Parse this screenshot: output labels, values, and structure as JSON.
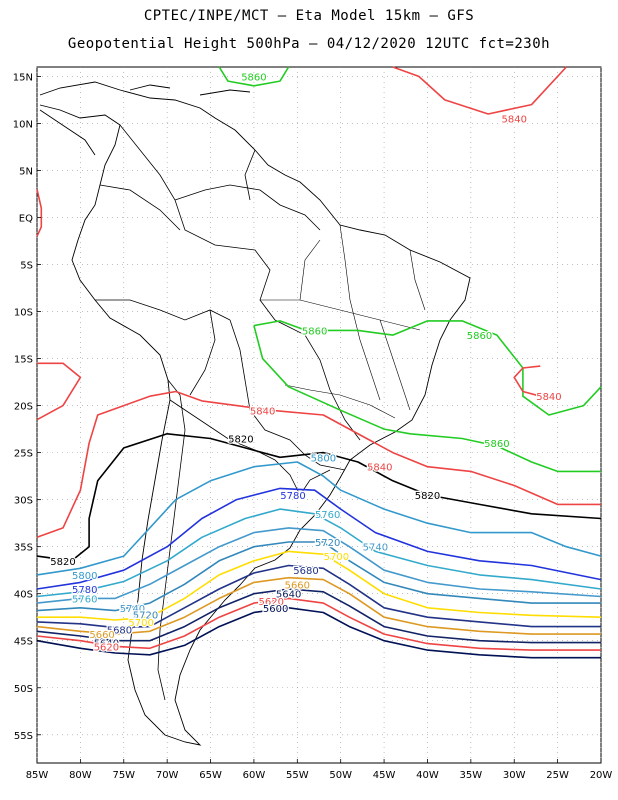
{
  "header": {
    "title_line1": "CPTEC/INPE/MCT –  Eta Model 15km – GFS",
    "title_line2": "Geopotential Height 500hPa – 04/12/2020 12UTC fct=230h"
  },
  "map": {
    "lat_labels": [
      "15N",
      "10N",
      "5N",
      "EQ",
      "5S",
      "10S",
      "15S",
      "20S",
      "25S",
      "30S",
      "35S",
      "40S",
      "45S",
      "50S",
      "55S"
    ],
    "lon_labels": [
      "85W",
      "80W",
      "75W",
      "70W",
      "65W",
      "60W",
      "55W",
      "50W",
      "45W",
      "40W",
      "35W",
      "30W",
      "25W",
      "20W"
    ],
    "lon_range": [
      -85,
      -20
    ],
    "lat_range": [
      -58,
      16
    ],
    "colors": {
      "5860": "#22cc22",
      "5840": "#ee4444",
      "5820": "#000000",
      "5800": "#3399cc",
      "5780": "#2233dd",
      "5760": "#33aacc",
      "5740": "#4499cc",
      "5720": "#3388bb",
      "5700": "#ffdd00",
      "5680": "#223388",
      "5660": "#dd9922",
      "5640": "#112266",
      "5620": "#ee4444",
      "5600": "#001155"
    },
    "contour_labels": [
      {
        "text": "5860",
        "color": "5860",
        "lon": -60,
        "lat": 15
      },
      {
        "text": "5840",
        "color": "5840",
        "lon": -30,
        "lat": 10.5
      },
      {
        "text": "5860",
        "color": "5860",
        "lon": -53,
        "lat": -12
      },
      {
        "text": "5860",
        "color": "5860",
        "lon": -34,
        "lat": -12.5
      },
      {
        "text": "5840",
        "color": "5840",
        "lon": -26,
        "lat": -19
      },
      {
        "text": "5840",
        "color": "5840",
        "lon": -59,
        "lat": -20.5
      },
      {
        "text": "5820",
        "color": "5820",
        "lon": -61.5,
        "lat": -23.5
      },
      {
        "text": "5860",
        "color": "5860",
        "lon": -32,
        "lat": -24
      },
      {
        "text": "5800",
        "color": "5800",
        "lon": -52,
        "lat": -25.5
      },
      {
        "text": "5840",
        "color": "5840",
        "lon": -45.5,
        "lat": -26.5
      },
      {
        "text": "5820",
        "color": "5820",
        "lon": -40,
        "lat": -29.5
      },
      {
        "text": "5780",
        "color": "5780",
        "lon": -55.5,
        "lat": -29.5
      },
      {
        "text": "5760",
        "color": "5760",
        "lon": -51.5,
        "lat": -31.5
      },
      {
        "text": "5720",
        "color": "5720",
        "lon": -51.5,
        "lat": -34.5
      },
      {
        "text": "5740",
        "color": "5740",
        "lon": -46,
        "lat": -35
      },
      {
        "text": "5700",
        "color": "5700",
        "lon": -50.5,
        "lat": -36
      },
      {
        "text": "5820",
        "color": "5820",
        "lon": -82,
        "lat": -36.5
      },
      {
        "text": "5800",
        "color": "5800",
        "lon": -79.5,
        "lat": -38
      },
      {
        "text": "5680",
        "color": "5680",
        "lon": -54,
        "lat": -37.5
      },
      {
        "text": "5660",
        "color": "5660",
        "lon": -55,
        "lat": -39
      },
      {
        "text": "5780",
        "color": "5780",
        "lon": -79.5,
        "lat": -39.5
      },
      {
        "text": "5640",
        "color": "5640",
        "lon": -56,
        "lat": -40
      },
      {
        "text": "5760",
        "color": "5760",
        "lon": -79.5,
        "lat": -40.5
      },
      {
        "text": "5620",
        "color": "5620",
        "lon": -58,
        "lat": -40.8
      },
      {
        "text": "5600",
        "color": "5600",
        "lon": -57.5,
        "lat": -41.5
      },
      {
        "text": "5740",
        "color": "5740",
        "lon": -74,
        "lat": -41.5
      },
      {
        "text": "5720",
        "color": "5720",
        "lon": -72.5,
        "lat": -42.2
      },
      {
        "text": "5700",
        "color": "5700",
        "lon": -73,
        "lat": -43
      },
      {
        "text": "5680",
        "color": "5680",
        "lon": -75.5,
        "lat": -43.8
      },
      {
        "text": "5660",
        "color": "5660",
        "lon": -77.5,
        "lat": -44.3
      },
      {
        "text": "5640",
        "color": "5640",
        "lon": -77,
        "lat": -45.2
      },
      {
        "text": "5620",
        "color": "5620",
        "lon": -77,
        "lat": -45.6
      }
    ]
  }
}
